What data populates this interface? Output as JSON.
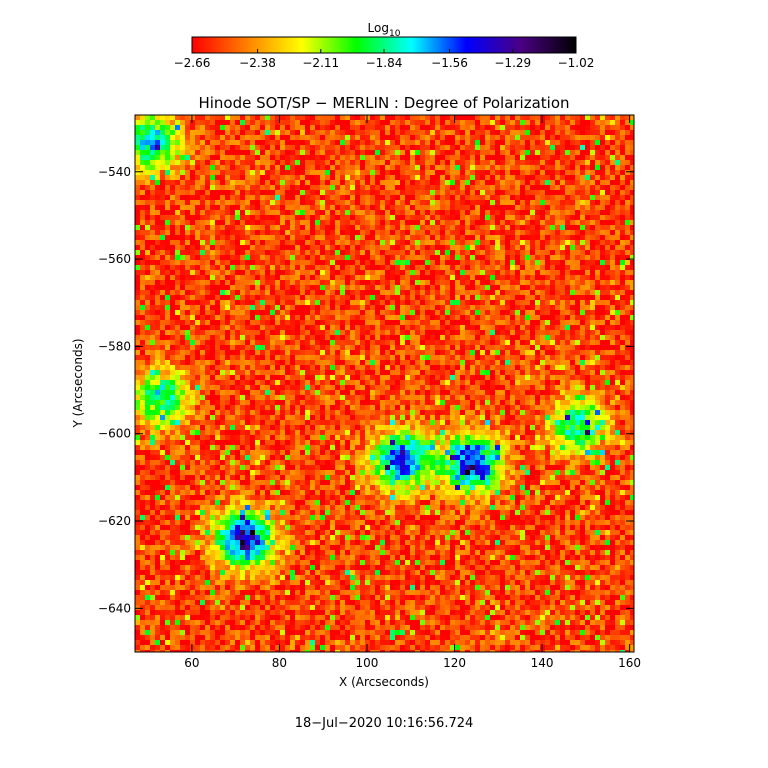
{
  "chart_data": {
    "type": "heatmap",
    "title": "Hinode SOT/SP − MERLIN : Degree of Polarization",
    "xlabel": "X (Arcseconds)",
    "ylabel": "Y (Arcseconds)",
    "xlim": [
      47,
      161
    ],
    "ylim": [
      -650,
      -527
    ],
    "x_ticks": [
      60,
      80,
      100,
      120,
      140,
      160
    ],
    "x_tick_labels": [
      "60",
      "80",
      "100",
      "120",
      "140",
      "160"
    ],
    "y_ticks": [
      -640,
      -620,
      -600,
      -580,
      -560,
      -540
    ],
    "y_tick_labels": [
      "−640",
      "−620",
      "−600",
      "−580",
      "−560",
      "−540"
    ],
    "colorbar": {
      "title": "Log",
      "title_subscript": "10",
      "min": -2.66,
      "max": -1.02,
      "tick_values": [
        -2.66,
        -2.38,
        -2.11,
        -1.84,
        -1.56,
        -1.29,
        -1.02
      ],
      "tick_labels": [
        "−2.66",
        "−2.38",
        "−2.11",
        "−1.84",
        "−1.56",
        "−1.29",
        "−1.02"
      ],
      "colors": [
        "#ff0000",
        "#ff8000",
        "#ffff00",
        "#00ff00",
        "#00ffff",
        "#0000ff",
        "#4b0082",
        "#000000"
      ]
    },
    "background_level": -2.55,
    "features": [
      {
        "name": "patch-lower-left",
        "x": 72,
        "y": -624,
        "peak": -1.15
      },
      {
        "name": "arc-center",
        "x": 108,
        "y": -606,
        "peak": -1.3
      },
      {
        "name": "arc-center-right",
        "x": 124,
        "y": -607,
        "peak": -1.2
      },
      {
        "name": "arc-right",
        "x": 148,
        "y": -598,
        "peak": -1.7
      },
      {
        "name": "spot-top-left",
        "x": 51,
        "y": -533,
        "peak": -1.6
      },
      {
        "name": "spot-left",
        "x": 53,
        "y": -592,
        "peak": -1.7
      }
    ]
  },
  "footer": {
    "timestamp": "18−Jul−2020 10:16:56.724"
  }
}
